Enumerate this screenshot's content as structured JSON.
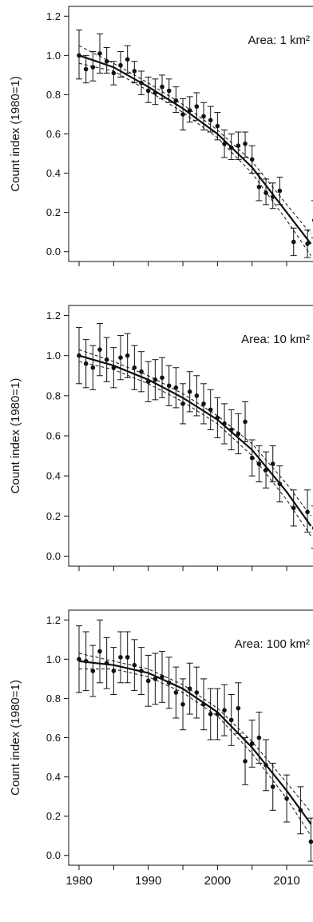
{
  "colors": {
    "ink": "#111111",
    "background": "#ffffff"
  },
  "figure": {
    "ylabel": "Count index (1980=1)",
    "x_ticks": [
      1980,
      1990,
      2000,
      2010
    ],
    "y_ticks": [
      "0.0",
      "0.2",
      "0.4",
      "0.6",
      "0.8",
      "1.0",
      "1.2"
    ]
  },
  "chart_data": [
    {
      "type": "scatter",
      "annotation": "Area: 1 km²",
      "ylabel": "Count index (1980=1)",
      "xlim": [
        1978.5,
        2013.8
      ],
      "ylim": [
        -0.05,
        1.25
      ],
      "y_ticks": [
        0.0,
        0.2,
        0.4,
        0.6,
        0.8,
        1.0,
        1.2
      ],
      "x_ticks": [
        1980,
        1985,
        1990,
        1995,
        2000,
        2005,
        2010
      ],
      "x_tick_labels": [],
      "points": [
        {
          "x": 1980,
          "y": 1.0,
          "lo": 0.88,
          "hi": 1.13
        },
        {
          "x": 1981,
          "y": 0.93,
          "lo": 0.86,
          "hi": 1.0
        },
        {
          "x": 1982,
          "y": 0.94,
          "lo": 0.87,
          "hi": 1.02
        },
        {
          "x": 1983,
          "y": 1.01,
          "lo": 0.91,
          "hi": 1.11
        },
        {
          "x": 1984,
          "y": 0.97,
          "lo": 0.91,
          "hi": 1.04
        },
        {
          "x": 1985,
          "y": 0.91,
          "lo": 0.85,
          "hi": 0.97
        },
        {
          "x": 1986,
          "y": 0.95,
          "lo": 0.89,
          "hi": 1.02
        },
        {
          "x": 1987,
          "y": 0.98,
          "lo": 0.91,
          "hi": 1.05
        },
        {
          "x": 1988,
          "y": 0.92,
          "lo": 0.86,
          "hi": 0.97
        },
        {
          "x": 1989,
          "y": 0.86,
          "lo": 0.8,
          "hi": 0.92
        },
        {
          "x": 1990,
          "y": 0.82,
          "lo": 0.76,
          "hi": 0.89
        },
        {
          "x": 1991,
          "y": 0.81,
          "lo": 0.75,
          "hi": 0.88
        },
        {
          "x": 1992,
          "y": 0.84,
          "lo": 0.78,
          "hi": 0.9
        },
        {
          "x": 1993,
          "y": 0.82,
          "lo": 0.76,
          "hi": 0.88
        },
        {
          "x": 1994,
          "y": 0.77,
          "lo": 0.71,
          "hi": 0.84
        },
        {
          "x": 1995,
          "y": 0.7,
          "lo": 0.62,
          "hi": 0.78
        },
        {
          "x": 1996,
          "y": 0.72,
          "lo": 0.66,
          "hi": 0.79
        },
        {
          "x": 1997,
          "y": 0.74,
          "lo": 0.67,
          "hi": 0.81
        },
        {
          "x": 1998,
          "y": 0.69,
          "lo": 0.62,
          "hi": 0.76
        },
        {
          "x": 1999,
          "y": 0.67,
          "lo": 0.61,
          "hi": 0.74
        },
        {
          "x": 2000,
          "y": 0.64,
          "lo": 0.57,
          "hi": 0.71
        },
        {
          "x": 2001,
          "y": 0.55,
          "lo": 0.48,
          "hi": 0.62
        },
        {
          "x": 2002,
          "y": 0.53,
          "lo": 0.47,
          "hi": 0.6
        },
        {
          "x": 2003,
          "y": 0.54,
          "lo": 0.47,
          "hi": 0.61
        },
        {
          "x": 2004,
          "y": 0.55,
          "lo": 0.48,
          "hi": 0.61
        },
        {
          "x": 2005,
          "y": 0.47,
          "lo": 0.4,
          "hi": 0.54
        },
        {
          "x": 2006,
          "y": 0.33,
          "lo": 0.26,
          "hi": 0.4
        },
        {
          "x": 2007,
          "y": 0.3,
          "lo": 0.24,
          "hi": 0.37
        },
        {
          "x": 2008,
          "y": 0.28,
          "lo": 0.22,
          "hi": 0.35
        },
        {
          "x": 2009,
          "y": 0.31,
          "lo": 0.24,
          "hi": 0.38
        },
        {
          "x": 2011,
          "y": 0.05,
          "lo": -0.02,
          "hi": 0.12
        },
        {
          "x": 2013,
          "y": 0.04,
          "lo": -0.03,
          "hi": 0.11
        },
        {
          "x": 2014,
          "y": 0.16,
          "lo": 0.07,
          "hi": 0.26
        }
      ],
      "fit": {
        "x": [
          1980,
          1985,
          1990,
          1995,
          2000,
          2005,
          2010,
          2013.5
        ],
        "y": [
          1.0,
          0.94,
          0.84,
          0.73,
          0.6,
          0.43,
          0.2,
          0.04
        ]
      },
      "ci_upper": {
        "x": [
          1980,
          1985,
          1990,
          1995,
          2000,
          2005,
          2010,
          2013.5
        ],
        "y": [
          1.05,
          0.96,
          0.86,
          0.75,
          0.62,
          0.46,
          0.24,
          0.09
        ]
      },
      "ci_lower": {
        "x": [
          1980,
          1985,
          1990,
          1995,
          2000,
          2005,
          2010,
          2013.5
        ],
        "y": [
          0.96,
          0.92,
          0.82,
          0.71,
          0.58,
          0.4,
          0.16,
          -0.02
        ]
      }
    },
    {
      "type": "scatter",
      "annotation": "Area: 10 km²",
      "ylabel": "Count index (1980=1)",
      "xlim": [
        1978.5,
        2013.8
      ],
      "ylim": [
        -0.05,
        1.25
      ],
      "y_ticks": [
        0.0,
        0.2,
        0.4,
        0.6,
        0.8,
        1.0,
        1.2
      ],
      "x_ticks": [
        1980,
        1985,
        1990,
        1995,
        2000,
        2005,
        2010
      ],
      "x_tick_labels": [],
      "points": [
        {
          "x": 1980,
          "y": 1.0,
          "lo": 0.86,
          "hi": 1.14
        },
        {
          "x": 1981,
          "y": 0.96,
          "lo": 0.84,
          "hi": 1.08
        },
        {
          "x": 1982,
          "y": 0.94,
          "lo": 0.83,
          "hi": 1.05
        },
        {
          "x": 1983,
          "y": 1.03,
          "lo": 0.9,
          "hi": 1.16
        },
        {
          "x": 1984,
          "y": 0.98,
          "lo": 0.87,
          "hi": 1.09
        },
        {
          "x": 1985,
          "y": 0.94,
          "lo": 0.84,
          "hi": 1.04
        },
        {
          "x": 1986,
          "y": 0.99,
          "lo": 0.88,
          "hi": 1.1
        },
        {
          "x": 1987,
          "y": 1.0,
          "lo": 0.89,
          "hi": 1.11
        },
        {
          "x": 1988,
          "y": 0.94,
          "lo": 0.83,
          "hi": 1.05
        },
        {
          "x": 1989,
          "y": 0.92,
          "lo": 0.82,
          "hi": 1.02
        },
        {
          "x": 1990,
          "y": 0.87,
          "lo": 0.77,
          "hi": 0.97
        },
        {
          "x": 1991,
          "y": 0.88,
          "lo": 0.78,
          "hi": 0.98
        },
        {
          "x": 1992,
          "y": 0.89,
          "lo": 0.79,
          "hi": 0.99
        },
        {
          "x": 1993,
          "y": 0.85,
          "lo": 0.75,
          "hi": 0.95
        },
        {
          "x": 1994,
          "y": 0.84,
          "lo": 0.74,
          "hi": 0.94
        },
        {
          "x": 1995,
          "y": 0.76,
          "lo": 0.66,
          "hi": 0.86
        },
        {
          "x": 1996,
          "y": 0.82,
          "lo": 0.72,
          "hi": 0.92
        },
        {
          "x": 1997,
          "y": 0.8,
          "lo": 0.7,
          "hi": 0.9
        },
        {
          "x": 1998,
          "y": 0.76,
          "lo": 0.66,
          "hi": 0.86
        },
        {
          "x": 1999,
          "y": 0.73,
          "lo": 0.63,
          "hi": 0.83
        },
        {
          "x": 2000,
          "y": 0.69,
          "lo": 0.59,
          "hi": 0.79
        },
        {
          "x": 2001,
          "y": 0.66,
          "lo": 0.56,
          "hi": 0.76
        },
        {
          "x": 2002,
          "y": 0.63,
          "lo": 0.53,
          "hi": 0.73
        },
        {
          "x": 2003,
          "y": 0.61,
          "lo": 0.51,
          "hi": 0.71
        },
        {
          "x": 2004,
          "y": 0.67,
          "lo": 0.57,
          "hi": 0.77
        },
        {
          "x": 2005,
          "y": 0.49,
          "lo": 0.4,
          "hi": 0.58
        },
        {
          "x": 2006,
          "y": 0.46,
          "lo": 0.37,
          "hi": 0.55
        },
        {
          "x": 2007,
          "y": 0.43,
          "lo": 0.34,
          "hi": 0.52
        },
        {
          "x": 2008,
          "y": 0.46,
          "lo": 0.37,
          "hi": 0.55
        },
        {
          "x": 2009,
          "y": 0.36,
          "lo": 0.27,
          "hi": 0.45
        },
        {
          "x": 2011,
          "y": 0.24,
          "lo": 0.15,
          "hi": 0.33
        },
        {
          "x": 2013,
          "y": 0.22,
          "lo": 0.12,
          "hi": 0.33
        },
        {
          "x": 2014,
          "y": 0.14,
          "lo": 0.04,
          "hi": 0.25
        }
      ],
      "fit": {
        "x": [
          1980,
          1985,
          1990,
          1995,
          2000,
          2005,
          2010,
          2013.5
        ],
        "y": [
          1.0,
          0.95,
          0.88,
          0.79,
          0.68,
          0.53,
          0.32,
          0.15
        ]
      },
      "ci_upper": {
        "x": [
          1980,
          1985,
          1990,
          1995,
          2000,
          2005,
          2010,
          2013.5
        ],
        "y": [
          1.03,
          0.97,
          0.9,
          0.81,
          0.7,
          0.56,
          0.36,
          0.2
        ]
      },
      "ci_lower": {
        "x": [
          1980,
          1985,
          1990,
          1995,
          2000,
          2005,
          2010,
          2013.5
        ],
        "y": [
          0.97,
          0.93,
          0.86,
          0.77,
          0.66,
          0.5,
          0.28,
          0.1
        ]
      }
    },
    {
      "type": "scatter",
      "annotation": "Area: 100 km²",
      "ylabel": "Count index (1980=1)",
      "xlim": [
        1978.5,
        2013.8
      ],
      "ylim": [
        -0.05,
        1.25
      ],
      "y_ticks": [
        0.0,
        0.2,
        0.4,
        0.6,
        0.8,
        1.0,
        1.2
      ],
      "x_ticks": [
        1980,
        1985,
        1990,
        1995,
        2000,
        2005,
        2010
      ],
      "x_tick_labels": [
        "1980",
        "1990",
        "2000",
        "2010"
      ],
      "points": [
        {
          "x": 1980,
          "y": 1.0,
          "lo": 0.83,
          "hi": 1.17
        },
        {
          "x": 1981,
          "y": 0.99,
          "lo": 0.84,
          "hi": 1.14
        },
        {
          "x": 1982,
          "y": 0.94,
          "lo": 0.81,
          "hi": 1.07
        },
        {
          "x": 1983,
          "y": 1.04,
          "lo": 0.88,
          "hi": 1.2
        },
        {
          "x": 1984,
          "y": 0.98,
          "lo": 0.85,
          "hi": 1.11
        },
        {
          "x": 1985,
          "y": 0.94,
          "lo": 0.82,
          "hi": 1.06
        },
        {
          "x": 1986,
          "y": 1.01,
          "lo": 0.88,
          "hi": 1.14
        },
        {
          "x": 1987,
          "y": 1.01,
          "lo": 0.88,
          "hi": 1.14
        },
        {
          "x": 1988,
          "y": 0.97,
          "lo": 0.84,
          "hi": 1.1
        },
        {
          "x": 1989,
          "y": 0.94,
          "lo": 0.82,
          "hi": 1.06
        },
        {
          "x": 1990,
          "y": 0.89,
          "lo": 0.76,
          "hi": 1.02
        },
        {
          "x": 1991,
          "y": 0.9,
          "lo": 0.77,
          "hi": 1.03
        },
        {
          "x": 1992,
          "y": 0.91,
          "lo": 0.78,
          "hi": 1.04
        },
        {
          "x": 1993,
          "y": 0.88,
          "lo": 0.75,
          "hi": 1.01
        },
        {
          "x": 1994,
          "y": 0.83,
          "lo": 0.7,
          "hi": 0.96
        },
        {
          "x": 1995,
          "y": 0.77,
          "lo": 0.64,
          "hi": 0.9
        },
        {
          "x": 1996,
          "y": 0.85,
          "lo": 0.72,
          "hi": 0.98
        },
        {
          "x": 1997,
          "y": 0.83,
          "lo": 0.7,
          "hi": 0.96
        },
        {
          "x": 1998,
          "y": 0.77,
          "lo": 0.64,
          "hi": 0.9
        },
        {
          "x": 1999,
          "y": 0.72,
          "lo": 0.59,
          "hi": 0.85
        },
        {
          "x": 2000,
          "y": 0.72,
          "lo": 0.59,
          "hi": 0.85
        },
        {
          "x": 2001,
          "y": 0.74,
          "lo": 0.61,
          "hi": 0.87
        },
        {
          "x": 2002,
          "y": 0.69,
          "lo": 0.56,
          "hi": 0.82
        },
        {
          "x": 2003,
          "y": 0.75,
          "lo": 0.62,
          "hi": 0.88
        },
        {
          "x": 2004,
          "y": 0.48,
          "lo": 0.36,
          "hi": 0.6
        },
        {
          "x": 2005,
          "y": 0.57,
          "lo": 0.45,
          "hi": 0.69
        },
        {
          "x": 2006,
          "y": 0.6,
          "lo": 0.47,
          "hi": 0.73
        },
        {
          "x": 2007,
          "y": 0.46,
          "lo": 0.33,
          "hi": 0.59
        },
        {
          "x": 2008,
          "y": 0.35,
          "lo": 0.23,
          "hi": 0.47
        },
        {
          "x": 2010,
          "y": 0.29,
          "lo": 0.17,
          "hi": 0.41
        },
        {
          "x": 2012,
          "y": 0.23,
          "lo": 0.11,
          "hi": 0.35
        },
        {
          "x": 2013.5,
          "y": 0.07,
          "lo": -0.03,
          "hi": 0.19
        }
      ],
      "fit": {
        "x": [
          1980,
          1985,
          1990,
          1995,
          2000,
          2005,
          2010,
          2013.5
        ],
        "y": [
          0.99,
          0.97,
          0.93,
          0.85,
          0.73,
          0.55,
          0.33,
          0.16
        ]
      },
      "ci_upper": {
        "x": [
          1980,
          1985,
          1990,
          1995,
          2000,
          2005,
          2010,
          2013.5
        ],
        "y": [
          1.03,
          0.99,
          0.95,
          0.87,
          0.75,
          0.58,
          0.37,
          0.22
        ]
      },
      "ci_lower": {
        "x": [
          1980,
          1985,
          1990,
          1995,
          2000,
          2005,
          2010,
          2013.5
        ],
        "y": [
          0.95,
          0.95,
          0.91,
          0.83,
          0.71,
          0.52,
          0.29,
          0.1
        ]
      }
    }
  ]
}
